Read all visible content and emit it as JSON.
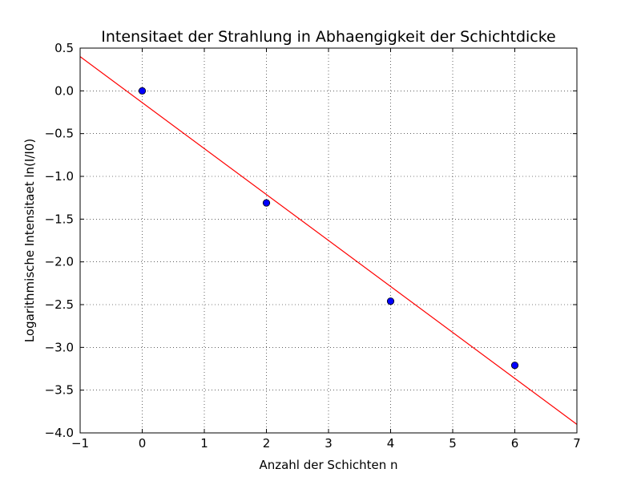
{
  "chart_data": {
    "type": "scatter",
    "title": "Intensitaet der Strahlung in Abhaengigkeit der Schichtdicke",
    "xlabel": "Anzahl der Schichten n",
    "ylabel": "Logarithmische Intensitaet ln(I/I0)",
    "xlim": [
      -1,
      7
    ],
    "ylim": [
      -4.0,
      0.5
    ],
    "grid": true,
    "xticks": [
      -1,
      0,
      1,
      2,
      3,
      4,
      5,
      6,
      7
    ],
    "xtick_labels": [
      "−1",
      "0",
      "1",
      "2",
      "3",
      "4",
      "5",
      "6",
      "7"
    ],
    "yticks": [
      0.5,
      0.0,
      -0.5,
      -1.0,
      -1.5,
      -2.0,
      -2.5,
      -3.0,
      -3.5,
      -4.0
    ],
    "ytick_labels": [
      "0.5",
      "0.0",
      "−0.5",
      "−1.0",
      "−1.5",
      "−2.0",
      "−2.5",
      "−3.0",
      "−3.5",
      "−4.0"
    ],
    "points": {
      "color": "#0000ff",
      "x": [
        0,
        2,
        4,
        6
      ],
      "y": [
        0.0,
        -1.31,
        -2.46,
        -3.21
      ]
    },
    "fit_line": {
      "color": "#ff0000",
      "x": [
        -1,
        7
      ],
      "y": [
        0.4,
        -3.9
      ]
    }
  }
}
